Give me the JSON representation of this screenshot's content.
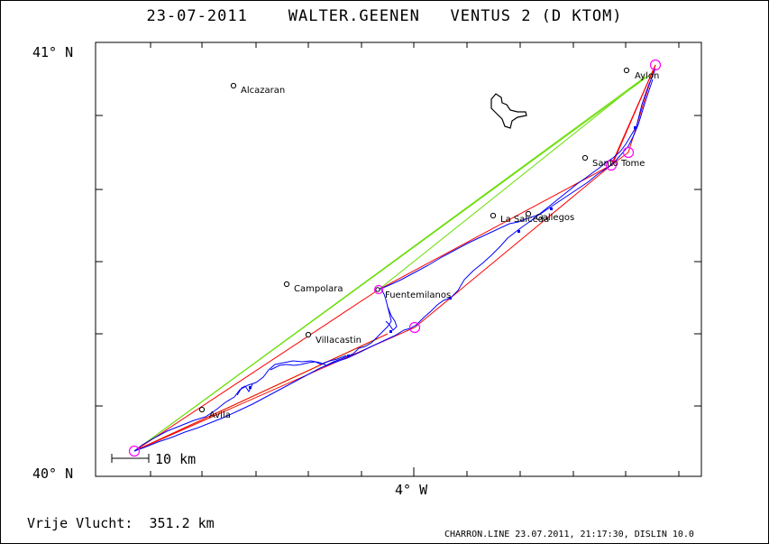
{
  "title": {
    "date": "23-07-2011",
    "pilot": "WALTER.GEENEN",
    "glider": "VENTUS 2 (D KTOM)"
  },
  "axes": {
    "lat_top": "41° N",
    "lat_bottom": "40° N",
    "lon_center": "4° W"
  },
  "scale_label": "10 km",
  "places": [
    {
      "name": "Alcazaran"
    },
    {
      "name": "Aylon"
    },
    {
      "name": "Santo Tome"
    },
    {
      "name": "La Salceda"
    },
    {
      "name": "Gallegos"
    },
    {
      "name": "Campolara"
    },
    {
      "name": "Fuentemilanos"
    },
    {
      "name": "Villacastin"
    },
    {
      "name": "Avila"
    }
  ],
  "summary": {
    "label": "Vrije Vlucht:",
    "distance": "351.2 km"
  },
  "footer": "CHARRON.LINE 23.07.2011, 21:17:30, DISLIN 10.0",
  "colors": {
    "track": "#0000ff",
    "task_legs": "#ff0000",
    "free_flight_line": "#66dd00",
    "turnpoints": "#ff00ff"
  }
}
